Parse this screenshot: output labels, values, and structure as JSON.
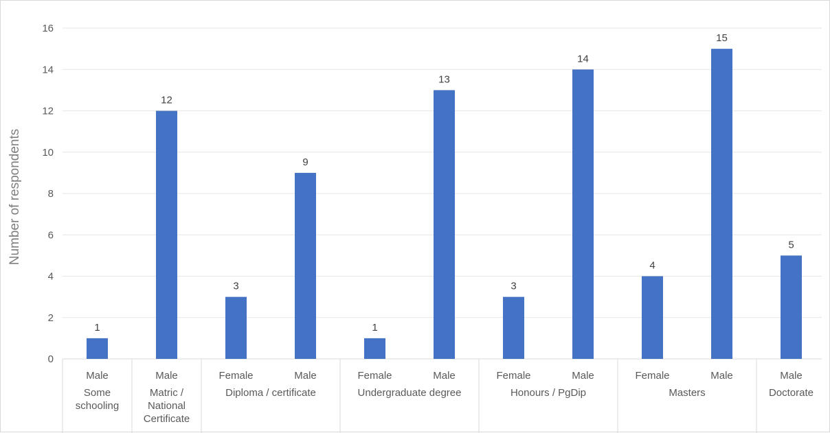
{
  "chart_data": {
    "type": "bar",
    "title": "",
    "ylabel": "Number of respondents",
    "xlabel": "",
    "ylim": [
      0,
      16
    ],
    "yticks": [
      0,
      2,
      4,
      6,
      8,
      10,
      12,
      14,
      16
    ],
    "grid": true,
    "bar_color": "#4472c4",
    "groups": [
      {
        "label": [
          "Some",
          "schooling"
        ],
        "bars": [
          {
            "gender": "Male",
            "value": 1
          }
        ]
      },
      {
        "label": [
          "Matric /",
          "National",
          "Certificate"
        ],
        "bars": [
          {
            "gender": "Male",
            "value": 12
          }
        ]
      },
      {
        "label": [
          "Diploma / certificate"
        ],
        "bars": [
          {
            "gender": "Female",
            "value": 3
          },
          {
            "gender": "Male",
            "value": 9
          }
        ]
      },
      {
        "label": [
          "Undergraduate degree"
        ],
        "bars": [
          {
            "gender": "Female",
            "value": 1
          },
          {
            "gender": "Male",
            "value": 13
          }
        ]
      },
      {
        "label": [
          "Honours / PgDip"
        ],
        "bars": [
          {
            "gender": "Female",
            "value": 3
          },
          {
            "gender": "Male",
            "value": 14
          }
        ]
      },
      {
        "label": [
          "Masters"
        ],
        "bars": [
          {
            "gender": "Female",
            "value": 4
          },
          {
            "gender": "Male",
            "value": 15
          }
        ]
      },
      {
        "label": [
          "Doctorate"
        ],
        "bars": [
          {
            "gender": "Male",
            "value": 5
          }
        ]
      }
    ]
  }
}
